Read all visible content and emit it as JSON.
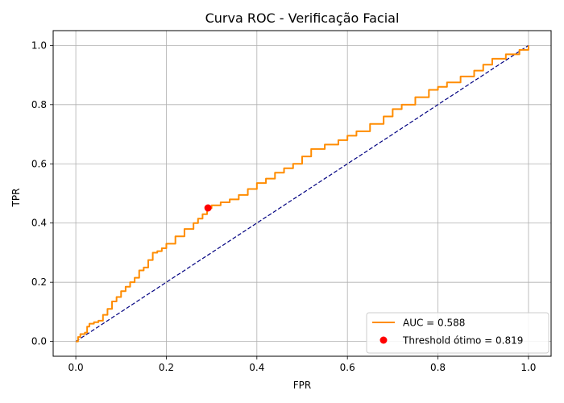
{
  "chart_data": {
    "type": "line",
    "title": "Curva ROC - Verificação Facial",
    "xlabel": "FPR",
    "ylabel": "TPR",
    "xlim": [
      -0.05,
      1.05
    ],
    "ylim": [
      -0.05,
      1.05
    ],
    "x_ticks": [
      "0.0",
      "0.2",
      "0.4",
      "0.6",
      "0.8",
      "1.0"
    ],
    "y_ticks": [
      "0.0",
      "0.2",
      "0.4",
      "0.6",
      "0.8",
      "1.0"
    ],
    "grid": true,
    "legend_position": "bottom-right",
    "series": [
      {
        "name": "AUC = 0.588",
        "kind": "line",
        "color": "#ff8c00",
        "x": [
          0.0,
          0.005,
          0.01,
          0.02,
          0.025,
          0.03,
          0.04,
          0.05,
          0.06,
          0.07,
          0.08,
          0.09,
          0.1,
          0.11,
          0.12,
          0.13,
          0.14,
          0.15,
          0.16,
          0.17,
          0.18,
          0.19,
          0.2,
          0.22,
          0.24,
          0.26,
          0.27,
          0.28,
          0.29,
          0.3,
          0.32,
          0.34,
          0.36,
          0.38,
          0.4,
          0.42,
          0.44,
          0.46,
          0.48,
          0.5,
          0.52,
          0.55,
          0.58,
          0.6,
          0.62,
          0.65,
          0.68,
          0.7,
          0.72,
          0.75,
          0.78,
          0.8,
          0.82,
          0.85,
          0.88,
          0.9,
          0.92,
          0.95,
          0.98,
          1.0
        ],
        "y": [
          0.0,
          0.015,
          0.025,
          0.03,
          0.05,
          0.06,
          0.065,
          0.07,
          0.09,
          0.11,
          0.135,
          0.15,
          0.17,
          0.185,
          0.2,
          0.215,
          0.24,
          0.25,
          0.275,
          0.3,
          0.305,
          0.315,
          0.33,
          0.355,
          0.38,
          0.4,
          0.415,
          0.43,
          0.45,
          0.46,
          0.47,
          0.48,
          0.495,
          0.515,
          0.535,
          0.55,
          0.57,
          0.585,
          0.6,
          0.625,
          0.65,
          0.665,
          0.68,
          0.695,
          0.71,
          0.735,
          0.76,
          0.785,
          0.8,
          0.825,
          0.85,
          0.86,
          0.875,
          0.895,
          0.915,
          0.935,
          0.955,
          0.97,
          0.985,
          1.0
        ]
      },
      {
        "name": "",
        "kind": "dashed-line",
        "color": "#000080",
        "x": [
          0.0,
          1.0
        ],
        "y": [
          0.0,
          1.0
        ]
      },
      {
        "name": "Threshold ótimo = 0.819",
        "kind": "scatter",
        "color": "#ff0000",
        "x": [
          0.292
        ],
        "y": [
          0.451
        ]
      }
    ]
  }
}
